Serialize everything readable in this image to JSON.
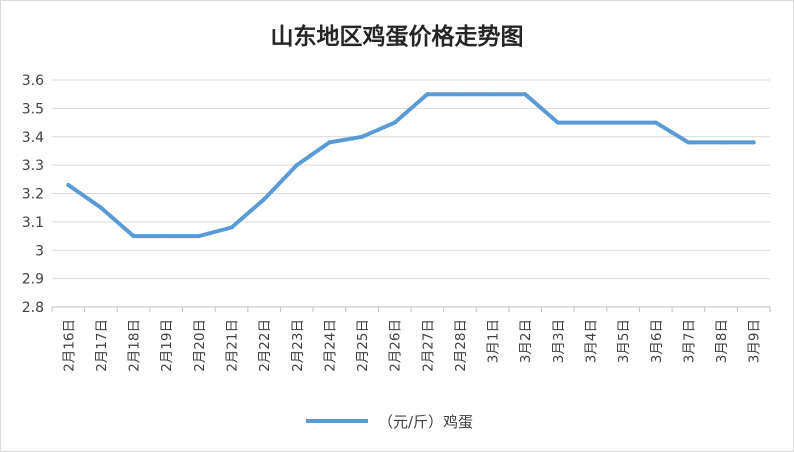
{
  "chart_data": {
    "type": "line",
    "title": "山东地区鸡蛋价格走势图",
    "xlabel": "",
    "ylabel": "",
    "categories": [
      "2月16日",
      "2月17日",
      "2月18日",
      "2月19日",
      "2月20日",
      "2月21日",
      "2月22日",
      "2月23日",
      "2月24日",
      "2月25日",
      "2月26日",
      "2月27日",
      "2月28日",
      "3月1日",
      "3月2日",
      "3月3日",
      "3月4日",
      "3月5日",
      "3月6日",
      "3月7日",
      "3月8日",
      "3月9日"
    ],
    "series": [
      {
        "name": "（元/斤）鸡蛋",
        "values": [
          3.23,
          3.15,
          3.05,
          3.05,
          3.05,
          3.08,
          3.18,
          3.3,
          3.38,
          3.4,
          3.45,
          3.55,
          3.55,
          3.55,
          3.55,
          3.45,
          3.45,
          3.45,
          3.45,
          3.38,
          3.38,
          3.38
        ]
      }
    ],
    "ylim": [
      2.8,
      3.6
    ],
    "yticks": [
      "2.8",
      "2.9",
      "3",
      "3.1",
      "3.2",
      "3.3",
      "3.4",
      "3.5",
      "3.6"
    ],
    "grid": true,
    "legend_position": "bottom",
    "colors": {
      "line": "#5b9bd5",
      "grid": "#d9d9d9",
      "axis": "#bfbfbf",
      "text": "#404040",
      "title": "#262626"
    }
  }
}
